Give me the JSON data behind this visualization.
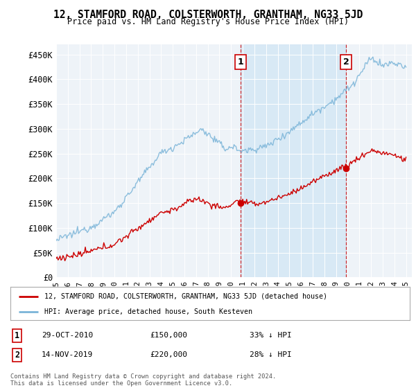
{
  "title": "12, STAMFORD ROAD, COLSTERWORTH, GRANTHAM, NG33 5JD",
  "subtitle": "Price paid vs. HM Land Registry's House Price Index (HPI)",
  "ylabel_ticks": [
    "£0",
    "£50K",
    "£100K",
    "£150K",
    "£200K",
    "£250K",
    "£300K",
    "£350K",
    "£400K",
    "£450K"
  ],
  "ytick_vals": [
    0,
    50000,
    100000,
    150000,
    200000,
    250000,
    300000,
    350000,
    400000,
    450000
  ],
  "ylim": [
    0,
    470000
  ],
  "xlim_start": 1995.0,
  "xlim_end": 2025.5,
  "hpi_color": "#7ab4d8",
  "price_color": "#cc0000",
  "sale1_x": 2010.83,
  "sale1_y": 150000,
  "sale1_label": "1",
  "sale2_x": 2019.87,
  "sale2_y": 220000,
  "sale2_label": "2",
  "legend_line1": "12, STAMFORD ROAD, COLSTERWORTH, GRANTHAM, NG33 5JD (detached house)",
  "legend_line2": "HPI: Average price, detached house, South Kesteven",
  "ann1_date": "29-OCT-2010",
  "ann1_price": "£150,000",
  "ann1_hpi": "33% ↓ HPI",
  "ann2_date": "14-NOV-2019",
  "ann2_price": "£220,000",
  "ann2_hpi": "28% ↓ HPI",
  "footnote": "Contains HM Land Registry data © Crown copyright and database right 2024.\nThis data is licensed under the Open Government Licence v3.0.",
  "bg_color": "#ffffff",
  "plot_bg_color": "#f0f4f8",
  "shade_color": "#d6e8f5"
}
